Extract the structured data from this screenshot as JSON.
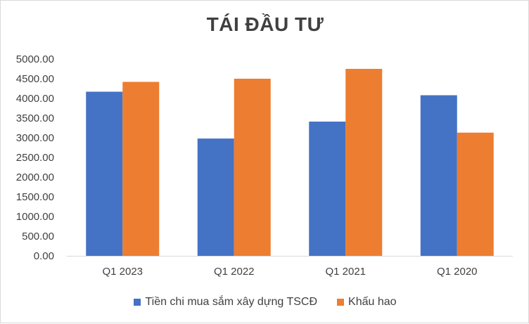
{
  "chart_data": {
    "type": "bar",
    "title": "TÁI ĐẦU TƯ",
    "categories": [
      "Q1 2023",
      "Q1 2022",
      "Q1 2021",
      "Q1 2020"
    ],
    "series": [
      {
        "name": "Tiền chi mua sắm xây dựng TSCĐ",
        "values": [
          4170,
          2980,
          3410,
          4080
        ],
        "color": "#4472c4"
      },
      {
        "name": "Khấu hao",
        "values": [
          4420,
          4500,
          4750,
          3130
        ],
        "color": "#ed7d31"
      }
    ],
    "yticks": [
      "0.00",
      "500.00",
      "1000.00",
      "1500.00",
      "2000.00",
      "2500.00",
      "3000.00",
      "3500.00",
      "4000.00",
      "4500.00",
      "5000.00"
    ],
    "ylim": [
      0,
      5000
    ],
    "xlabel": "",
    "ylabel": "",
    "grid": false,
    "legend_position": "bottom"
  }
}
